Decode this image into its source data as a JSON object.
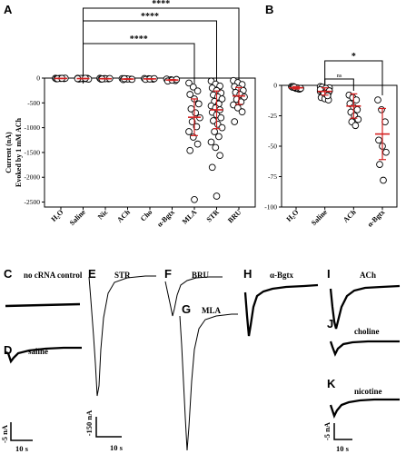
{
  "panels": {
    "A": "A",
    "B": "B",
    "C": "C",
    "D": "D",
    "E": "E",
    "F": "F",
    "G": "G",
    "H": "H",
    "I": "I",
    "J": "J",
    "K": "K"
  },
  "chart_data": [
    {
      "type": "scatter",
      "panel": "A",
      "ylabel": "Current (nA)",
      "ylabel2": "Evoked by 1 mM ACh",
      "ylim": [
        -2600,
        0
      ],
      "yticks": [
        0,
        -500,
        -1000,
        -1500,
        -2000,
        -2500
      ],
      "categories": [
        "H₂O",
        "Saline",
        "Nic",
        "ACh",
        "Cho",
        "α-Bgtx",
        "MLA",
        "STR",
        "BRU"
      ],
      "points": [
        [
          -3,
          -6,
          -10,
          -14,
          -8,
          -2,
          -12,
          -5
        ],
        [
          -4,
          -8,
          -12,
          -18,
          -10,
          -6,
          -15,
          -9,
          -20,
          -7,
          -3,
          -11
        ],
        [
          -5,
          -10,
          -15,
          -20,
          -12,
          -8,
          -18
        ],
        [
          -10,
          -15,
          -22,
          -30,
          -18,
          -25,
          -12
        ],
        [
          -8,
          -14,
          -20,
          -26,
          -18,
          -10
        ],
        [
          -20,
          -35,
          -50,
          -60,
          -42,
          -28
        ],
        [
          -100,
          -180,
          -260,
          -330,
          -420,
          -520,
          -620,
          -700,
          -800,
          -880,
          -980,
          -1080,
          -1190,
          -1330,
          -1460,
          -2450
        ],
        [
          -60,
          -120,
          -160,
          -200,
          -250,
          -300,
          -340,
          -380,
          -420,
          -470,
          -520,
          -560,
          -600,
          -640,
          -690,
          -740,
          -800,
          -860,
          -930,
          -1000,
          -1080,
          -1180,
          -1290,
          -1400,
          -1560,
          -1800,
          -2380
        ],
        [
          -50,
          -90,
          -130,
          -170,
          -210,
          -250,
          -290,
          -330,
          -380,
          -430,
          -480,
          -540,
          -600,
          -680,
          -880
        ]
      ],
      "means": [
        -7,
        -10,
        -13,
        -19,
        -16,
        -39,
        -790,
        -640,
        -360
      ],
      "errors": [
        4,
        4,
        5,
        6,
        5,
        9,
        370,
        380,
        170
      ],
      "significance": [
        {
          "from": "Saline",
          "to": "BRU",
          "label": "****"
        },
        {
          "from": "Saline",
          "to": "STR",
          "label": "****"
        },
        {
          "from": "Saline",
          "to": "MLA",
          "label": "****"
        }
      ]
    },
    {
      "type": "scatter",
      "panel": "B",
      "ylim": [
        -100,
        0
      ],
      "yticks": [
        0,
        -25,
        -50,
        -75,
        -100
      ],
      "categories": [
        "H₂O",
        "Saline",
        "ACh",
        "α-Bgtx"
      ],
      "points": [
        [
          -1,
          -2,
          -3,
          -1.5,
          -2.5,
          -3,
          -1,
          -2,
          -2.5,
          -1.5
        ],
        [
          -1,
          -2,
          -3,
          -4,
          -5,
          -6,
          -7,
          -8,
          -2,
          -3,
          -4,
          -5,
          -6,
          -9,
          -10,
          -11,
          -12,
          -1.5,
          -2.5,
          -4.5,
          -5.5,
          -7.5,
          -3.5,
          -6.5,
          -8.5
        ],
        [
          -8,
          -10,
          -12,
          -15,
          -18,
          -20,
          -22,
          -25,
          -28,
          -30,
          -33
        ],
        [
          -12,
          -20,
          -30,
          -45,
          -50,
          -55,
          -65,
          -78
        ]
      ],
      "means": [
        -2,
        -5,
        -17,
        -40
      ],
      "errors": [
        1,
        3,
        10,
        21
      ],
      "significance": [
        {
          "from": "Saline",
          "to": "α-Bgtx",
          "label": "*"
        },
        {
          "from": "Saline",
          "to": "ACh",
          "label": "ns"
        }
      ]
    }
  ],
  "traces": {
    "C": "no cRNA control",
    "D": "saline",
    "E": "STR",
    "F": "BRU",
    "G": "MLA",
    "H": "α-Bgtx",
    "I": "ACh",
    "J": "choline",
    "K": "nicotine"
  },
  "scale_bars": {
    "left_amp": "-5 nA",
    "left_time": "10 s",
    "mid_amp": "-150 nA",
    "mid_time": "10 s",
    "right_amp": "-5 nA",
    "right_time": "10 s"
  },
  "colors": {
    "mean_bar": "#d42020",
    "points": "#000000"
  }
}
